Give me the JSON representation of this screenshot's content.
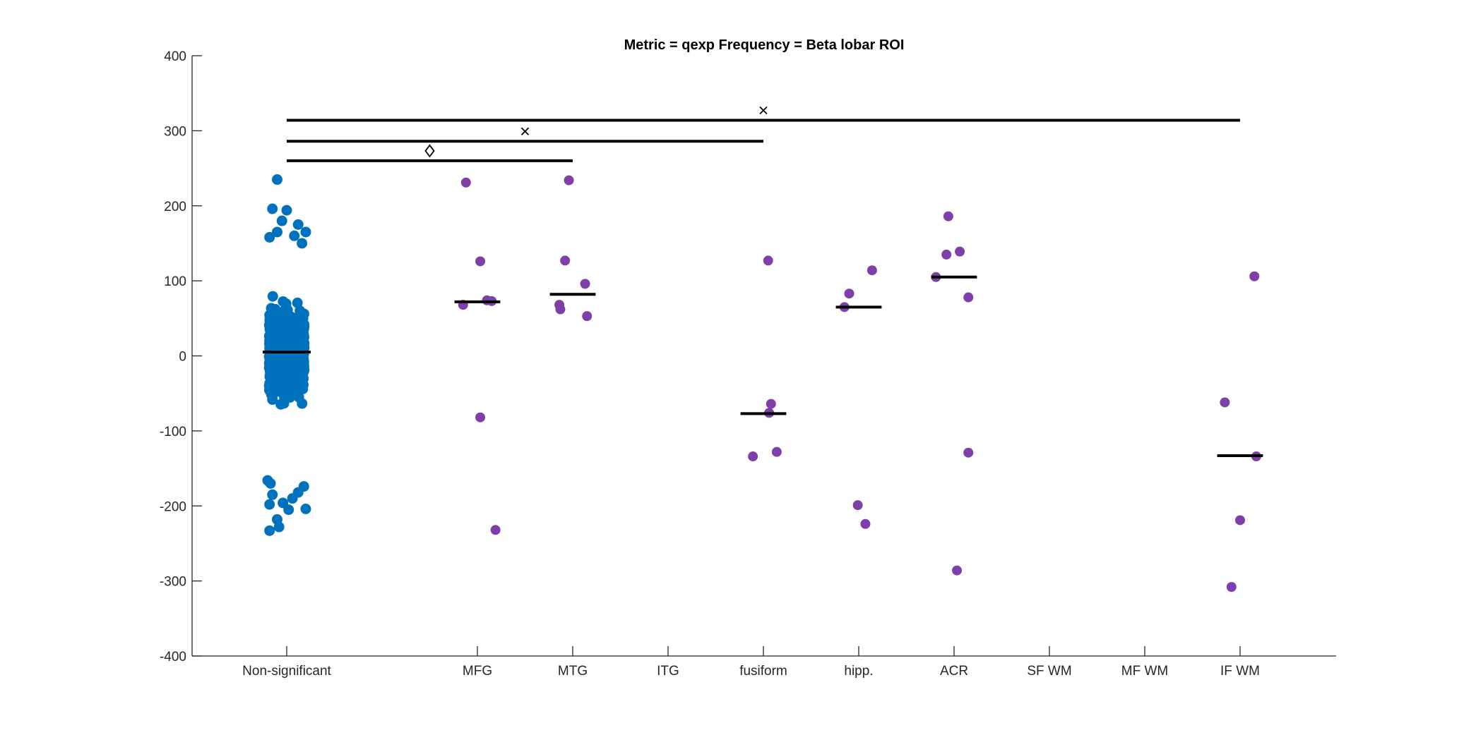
{
  "chart_data": {
    "type": "scatter",
    "title": "Metric = qexp Frequency = Beta lobar ROI",
    "xlabel": "",
    "ylabel": "",
    "ylim": [
      -400,
      400
    ],
    "yticks": [
      -400,
      -300,
      -200,
      -100,
      0,
      100,
      200,
      300,
      400
    ],
    "categories": [
      "Non-significant",
      "MFG",
      "MTG",
      "ITG",
      "fusiform",
      "hipp.",
      "ACR",
      "SF WM",
      "MF WM",
      "IF WM"
    ],
    "grid": false,
    "legend": "none",
    "colors": {
      "nonsignificant": "#0072BD",
      "significant": "#7E3FA8",
      "median_line": "#000000",
      "axis": "#262626"
    },
    "nonsignificant_group": {
      "category": "Non-significant",
      "median": 5,
      "max": 235,
      "min": -233,
      "sample_points": [
        {
          "dx": -0.15,
          "y": 196
        },
        {
          "dx": 0.0,
          "y": 194
        },
        {
          "dx": -0.05,
          "y": 180
        },
        {
          "dx": 0.12,
          "y": 175
        },
        {
          "dx": 0.2,
          "y": 165
        },
        {
          "dx": -0.1,
          "y": 165
        },
        {
          "dx": 0.08,
          "y": 160
        },
        {
          "dx": -0.18,
          "y": 158
        },
        {
          "dx": 0.16,
          "y": 150
        },
        {
          "dx": -0.17,
          "y": -170
        },
        {
          "dx": 0.18,
          "y": -174
        },
        {
          "dx": -0.2,
          "y": -166
        },
        {
          "dx": -0.15,
          "y": -185
        },
        {
          "dx": 0.06,
          "y": -190
        },
        {
          "dx": -0.04,
          "y": -196
        },
        {
          "dx": 0.2,
          "y": -204
        },
        {
          "dx": -0.18,
          "y": -198
        },
        {
          "dx": -0.1,
          "y": -218
        },
        {
          "dx": -0.08,
          "y": -228
        },
        {
          "dx": -0.18,
          "y": -233
        },
        {
          "dx": -0.1,
          "y": 235
        },
        {
          "dx": 0.02,
          "y": -205
        },
        {
          "dx": 0.12,
          "y": -182
        }
      ]
    },
    "series": [
      {
        "category": "MFG",
        "median": 72,
        "points": [
          {
            "dx": -0.12,
            "y": 231
          },
          {
            "dx": 0.03,
            "y": 126
          },
          {
            "dx": 0.1,
            "y": 74
          },
          {
            "dx": 0.15,
            "y": 73
          },
          {
            "dx": -0.15,
            "y": 68
          },
          {
            "dx": 0.03,
            "y": -82
          },
          {
            "dx": 0.19,
            "y": -232
          }
        ]
      },
      {
        "category": "MTG",
        "median": 82,
        "points": [
          {
            "dx": -0.04,
            "y": 234
          },
          {
            "dx": -0.08,
            "y": 127
          },
          {
            "dx": 0.13,
            "y": 96
          },
          {
            "dx": -0.14,
            "y": 68
          },
          {
            "dx": -0.13,
            "y": 62
          },
          {
            "dx": 0.15,
            "y": 53
          }
        ]
      },
      {
        "category": "ITG",
        "median": null,
        "points": []
      },
      {
        "category": "fusiform",
        "median": -77,
        "points": [
          {
            "dx": 0.05,
            "y": 127
          },
          {
            "dx": 0.08,
            "y": -64
          },
          {
            "dx": 0.06,
            "y": -76
          },
          {
            "dx": 0.14,
            "y": -128
          },
          {
            "dx": -0.11,
            "y": -134
          }
        ]
      },
      {
        "category": "hipp.",
        "median": 65,
        "points": [
          {
            "dx": 0.14,
            "y": 114
          },
          {
            "dx": -0.1,
            "y": 83
          },
          {
            "dx": -0.15,
            "y": 65
          },
          {
            "dx": -0.01,
            "y": -199
          },
          {
            "dx": 0.07,
            "y": -224
          }
        ]
      },
      {
        "category": "ACR",
        "median": 105,
        "points": [
          {
            "dx": -0.06,
            "y": 186
          },
          {
            "dx": 0.06,
            "y": 139
          },
          {
            "dx": -0.08,
            "y": 135
          },
          {
            "dx": -0.19,
            "y": 105
          },
          {
            "dx": 0.15,
            "y": 78
          },
          {
            "dx": 0.15,
            "y": -129
          },
          {
            "dx": 0.03,
            "y": -286
          }
        ]
      },
      {
        "category": "SF WM",
        "median": null,
        "points": []
      },
      {
        "category": "MF WM",
        "median": null,
        "points": []
      },
      {
        "category": "IF WM",
        "median": -133,
        "points": [
          {
            "dx": 0.15,
            "y": 106
          },
          {
            "dx": -0.16,
            "y": -62
          },
          {
            "dx": 0.17,
            "y": -134
          },
          {
            "dx": 0.0,
            "y": -219
          },
          {
            "dx": -0.09,
            "y": -308
          }
        ]
      }
    ],
    "comparisons": [
      {
        "from": "Non-significant",
        "to": "MTG",
        "y": 260,
        "marker": "diamond",
        "marker_x_mid": 1.5
      },
      {
        "from": "Non-significant",
        "to": "fusiform",
        "y": 286,
        "marker": "cross",
        "marker_x_mid": 2.5
      },
      {
        "from": "Non-significant",
        "to": "IF WM",
        "y": 314,
        "marker": "cross",
        "marker_x_mid": 5.0
      }
    ]
  }
}
